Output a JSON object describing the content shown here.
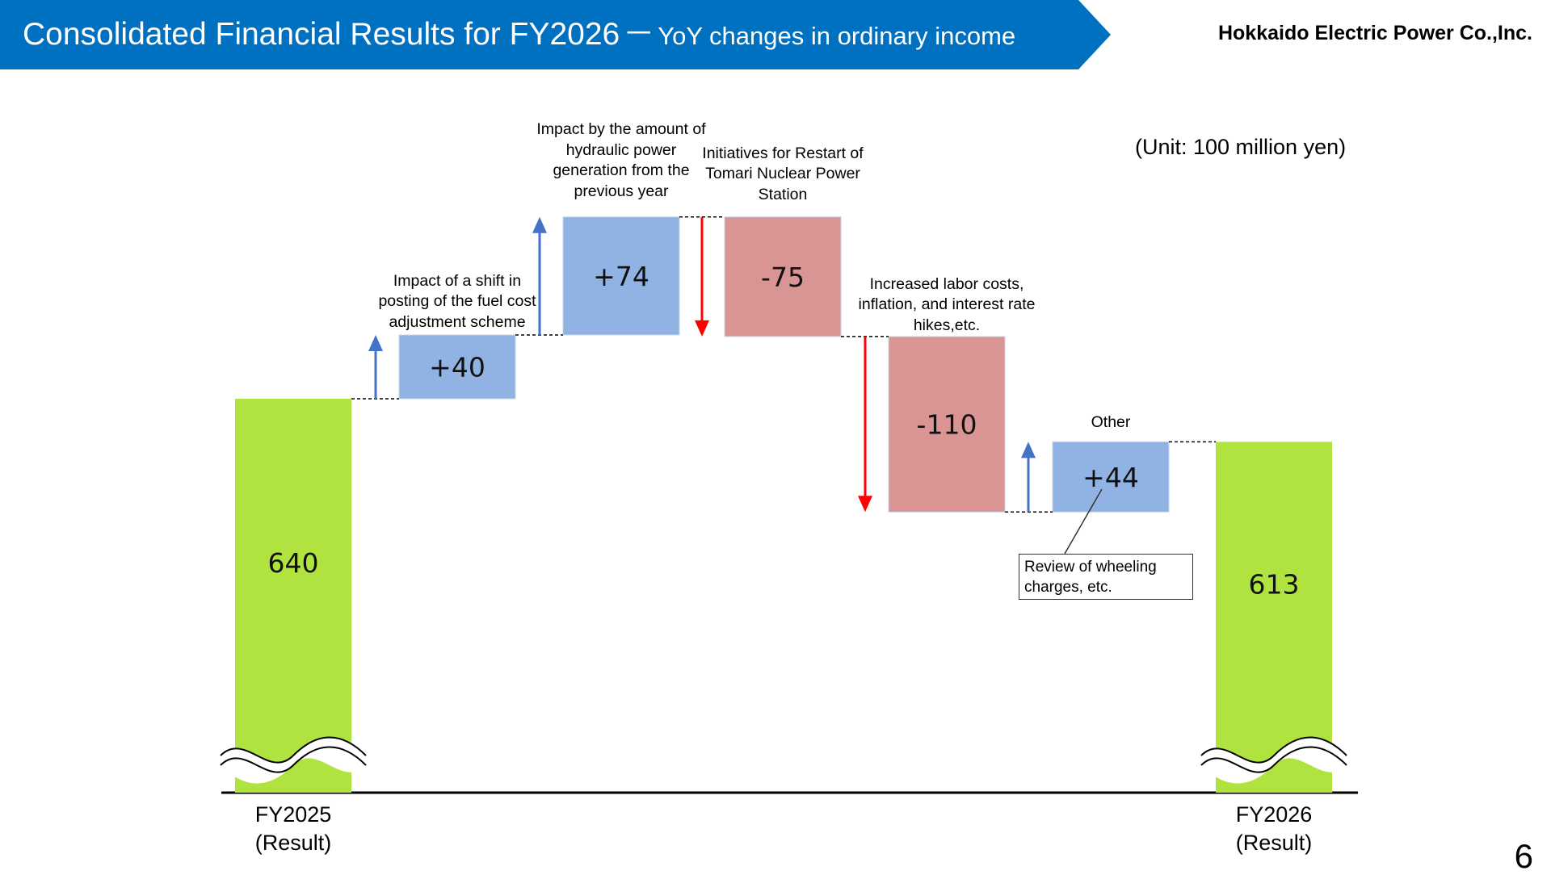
{
  "header": {
    "title": "Consolidated Financial Results for FY2026",
    "dash": "－",
    "subtitle": "YoY changes in ordinary income",
    "company": "Hokkaido Electric Power Co.,Inc."
  },
  "unit_label": "(Unit: 100 million yen)",
  "page_number": "6",
  "callout": "Review of wheeling charges, etc.",
  "colors": {
    "banner": "#0070c0",
    "total_bar": "#b0e33f",
    "increase_bar": "#91b3e3",
    "decrease_bar": "#d99593",
    "increase_arrow": "#4472c4",
    "decrease_arrow": "#ff0000"
  },
  "chart_data": {
    "type": "waterfall",
    "unit": "100 million yen",
    "steps": [
      {
        "kind": "total",
        "label": "FY2025\n(Result)",
        "value": 640,
        "display": "640"
      },
      {
        "kind": "delta",
        "annotation": "Impact of a shift in posting of the fuel cost adjustment scheme",
        "value": 40,
        "display": "+40"
      },
      {
        "kind": "delta",
        "annotation": "Impact by the amount of hydraulic power generation from the previous year",
        "value": 74,
        "display": "+74"
      },
      {
        "kind": "delta",
        "annotation": "Initiatives for Restart of Tomari Nuclear Power Station",
        "value": -75,
        "display": "-75"
      },
      {
        "kind": "delta",
        "annotation": "Increased labor costs, inflation, and interest rate hikes,etc.",
        "value": -110,
        "display": "-110"
      },
      {
        "kind": "delta",
        "annotation": "Other",
        "value": 44,
        "display": "+44"
      },
      {
        "kind": "total",
        "label": "FY2026\n(Result)",
        "value": 613,
        "display": "613"
      }
    ],
    "axis_break": true
  }
}
